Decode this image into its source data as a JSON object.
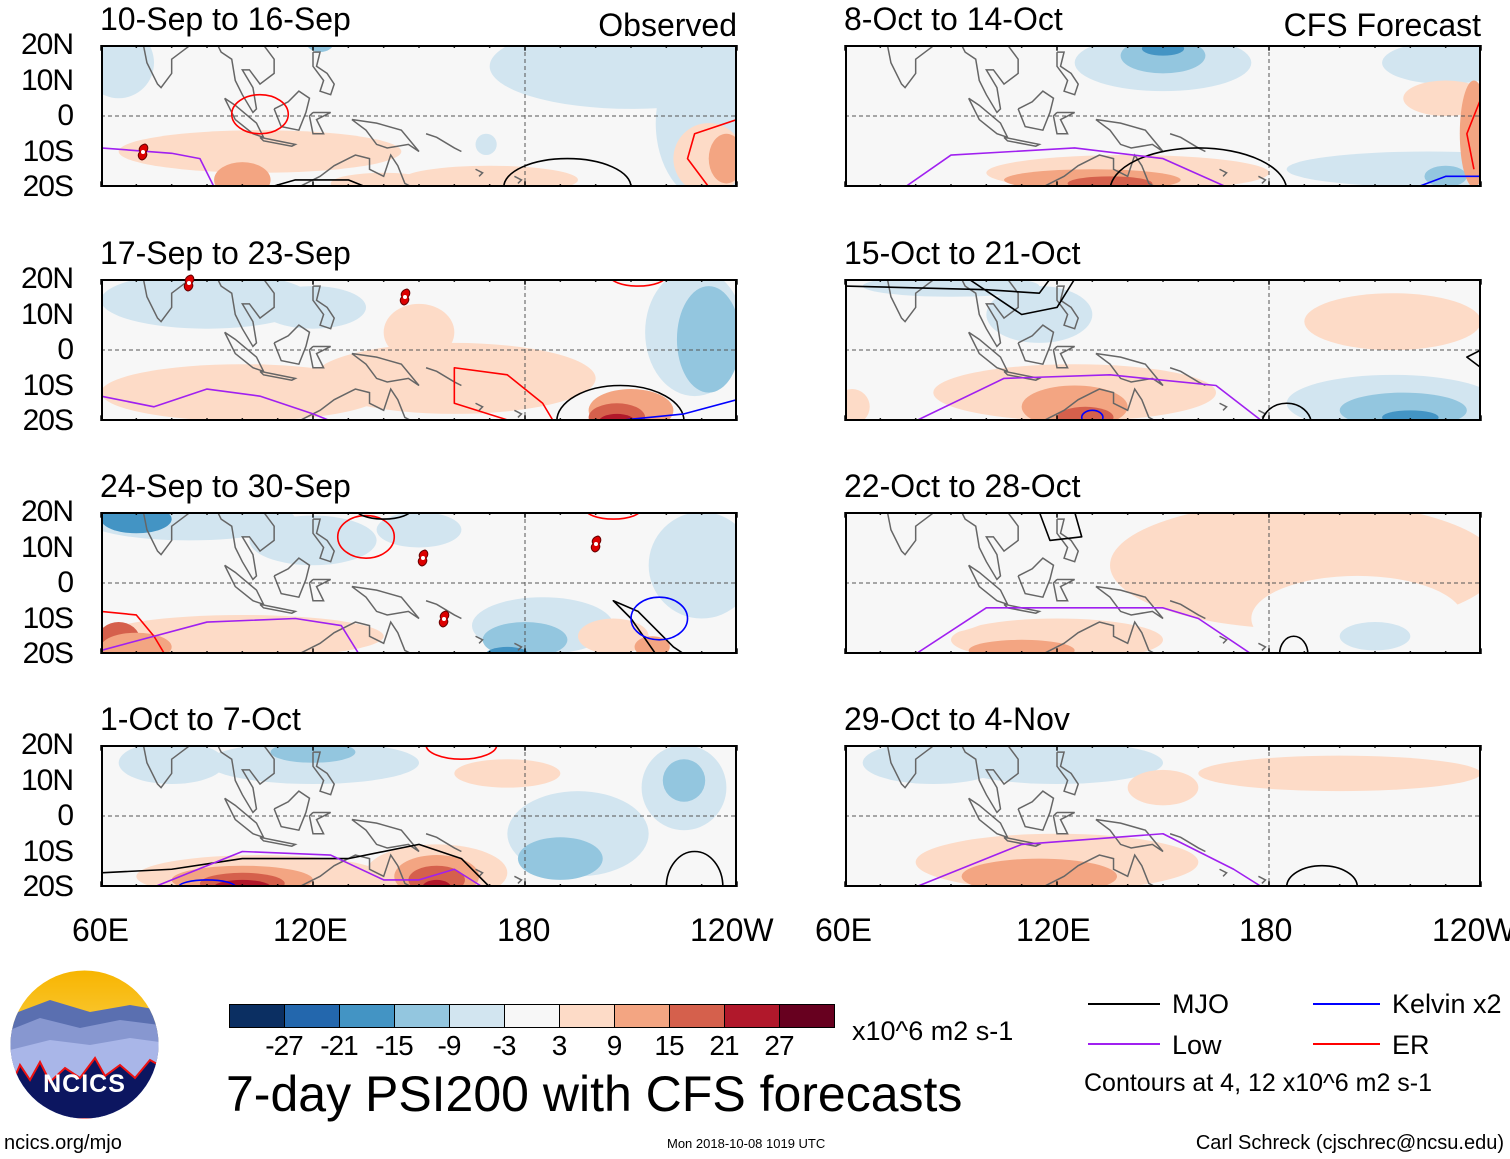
{
  "panels": [
    {
      "title": "10-Sep to 16-Sep",
      "label": "Observed"
    },
    {
      "title": "17-Sep to 23-Sep",
      "label": ""
    },
    {
      "title": "24-Sep to 30-Sep",
      "label": ""
    },
    {
      "title": "1-Oct to 7-Oct",
      "label": ""
    },
    {
      "title": "8-Oct to 14-Oct",
      "label": "CFS Forecast"
    },
    {
      "title": "15-Oct to 21-Oct",
      "label": ""
    },
    {
      "title": "22-Oct to 28-Oct",
      "label": ""
    },
    {
      "title": "29-Oct to 4-Nov",
      "label": ""
    }
  ],
  "lat_labels": [
    "20N",
    "10N",
    "0",
    "10S",
    "20S"
  ],
  "lon_labels": [
    "60E",
    "120E",
    "180",
    "120W"
  ],
  "colorbar": {
    "levels": [
      "-27",
      "-21",
      "-15",
      "-9",
      "-3",
      "3",
      "9",
      "15",
      "21",
      "27"
    ],
    "colors": [
      "#0b2f62",
      "#2367ad",
      "#4394c4",
      "#93c6df",
      "#d2e5f0",
      "#f7f7f7",
      "#fddbc7",
      "#f3a582",
      "#d5604c",
      "#b1182b",
      "#67001f"
    ],
    "units": "x10^6 m2 s-1"
  },
  "legend": {
    "items": [
      {
        "label": "MJO",
        "color": "#000000"
      },
      {
        "label": "Kelvin x2",
        "color": "#0000ff"
      },
      {
        "label": "Low",
        "color": "#a020f0"
      },
      {
        "label": "ER",
        "color": "#ff0000"
      }
    ],
    "contours_note": "Contours at 4, 12 x10^6 m2 s-1"
  },
  "title": "7-day PSI200 with CFS forecasts",
  "logo_text": "NCICS",
  "footer": {
    "url": "ncics.org/mjo",
    "timestamp": "Mon 2018-10-08 1019 UTC",
    "credit": "Carl Schreck (cjschrec@ncsu.edu)"
  }
}
